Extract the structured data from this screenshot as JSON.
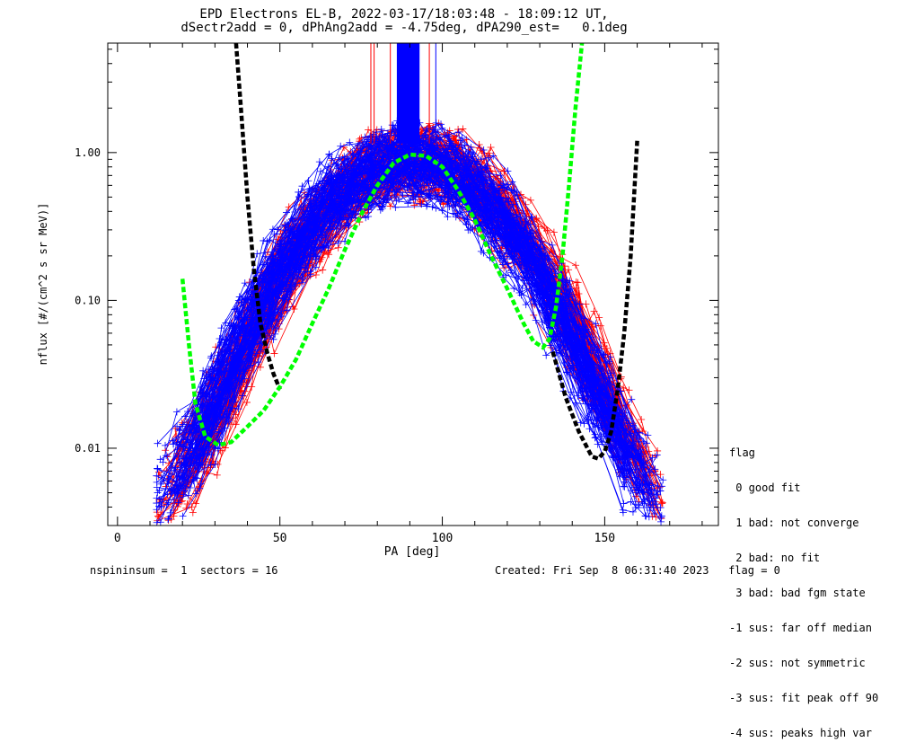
{
  "header": {
    "title_line1": "EPD Electrons EL-B, 2022-03-17/18:03:48 - 18:09:12 UT,",
    "title_line2": "dSectr2add = 0, dPhAng2add = -4.75deg, dPA290_est=   0.1deg"
  },
  "legend": {
    "title": "flag",
    "items": [
      " 0 good fit",
      " 1 bad: not converge",
      " 2 bad: no fit",
      " 3 bad: bad fgm state",
      "-1 sus: far off median",
      "-2 sus: not symmetric",
      "-3 sus: fit peak off 90",
      "-4 sus: peaks high var"
    ]
  },
  "footer": {
    "left": "nspininsum =  1  sectors = 16",
    "right": "Created: Fri Sep  8 06:31:40 2023   flag = 0"
  },
  "colors": {
    "red": "#ff0000",
    "blue": "#0000ff",
    "green": "#00ff00",
    "black": "#000000"
  },
  "chart_data": {
    "type": "line",
    "title": "EPD Electrons EL-B, 2022-03-17/18:03:48 - 18:09:12 UT,",
    "subtitle": "dSectr2add = 0, dPhAng2add = -4.75deg, dPA290_est=   0.1deg",
    "xlabel": "PA [deg]",
    "ylabel": "nflux [#/(cm^2 s sr MeV)]",
    "xlim": [
      -3,
      185
    ],
    "ylim": [
      0.003,
      5.5
    ],
    "yscale": "log",
    "xticks": [
      0,
      50,
      100,
      150
    ],
    "xtick_labels": [
      "0",
      "50",
      "100",
      "150"
    ],
    "yticks": [
      0.01,
      0.1,
      1.0
    ],
    "ytick_labels": [
      "0.01",
      "0.10",
      "1.00"
    ],
    "grid": false,
    "series": [
      {
        "color": "#000000",
        "style": "dashed",
        "x": [
          36.5,
          38,
          40,
          42,
          44,
          46,
          48,
          50
        ],
        "y": [
          5.5,
          2.0,
          0.5,
          0.16,
          0.07,
          0.045,
          0.032,
          0.025
        ]
      },
      {
        "color": "#000000",
        "style": "dashed",
        "x": [
          134,
          138,
          142,
          146,
          148,
          150,
          152,
          154,
          156,
          158,
          160
        ],
        "y": [
          0.045,
          0.022,
          0.013,
          0.0088,
          0.0085,
          0.0095,
          0.013,
          0.025,
          0.06,
          0.2,
          1.2
        ]
      },
      {
        "color": "#00ff00",
        "style": "dashed",
        "x": [
          20,
          22,
          24,
          27,
          31,
          35,
          40,
          45,
          50,
          55,
          60,
          65,
          70,
          75,
          80,
          85,
          90,
          95,
          100,
          105,
          110,
          115,
          120,
          125,
          128,
          131,
          133,
          135,
          137,
          139,
          141,
          143
        ],
        "y": [
          0.14,
          0.05,
          0.02,
          0.012,
          0.0105,
          0.011,
          0.014,
          0.018,
          0.026,
          0.04,
          0.07,
          0.12,
          0.22,
          0.38,
          0.6,
          0.85,
          0.97,
          0.95,
          0.8,
          0.55,
          0.35,
          0.2,
          0.12,
          0.07,
          0.053,
          0.048,
          0.055,
          0.09,
          0.2,
          0.6,
          2.0,
          5.5
        ]
      }
    ],
    "scatter_cloud": [
      {
        "color": "#ff0000",
        "name": "",
        "curves": 95
      },
      {
        "color": "#0000ff",
        "name": "",
        "curves": 110
      }
    ]
  }
}
